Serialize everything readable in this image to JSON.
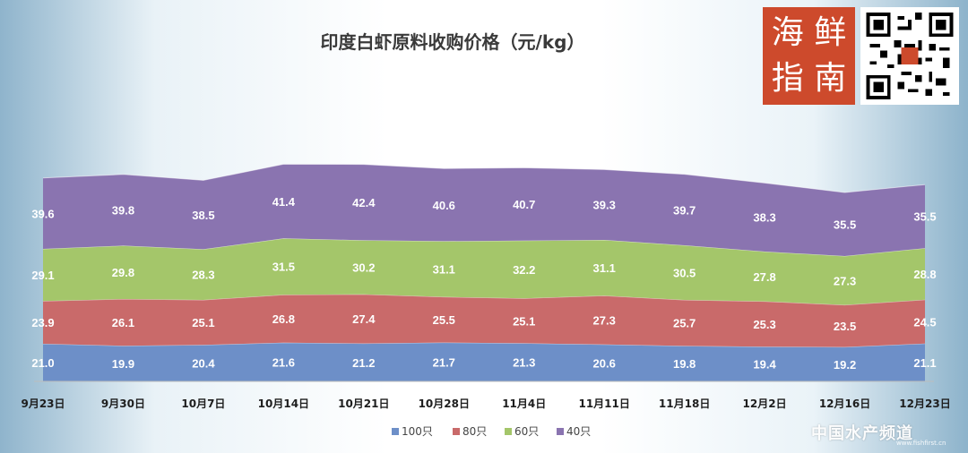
{
  "chart_data": {
    "type": "area",
    "stacked": true,
    "title": "印度白虾原料收购价格（元/kg）",
    "categories": [
      "9月23日",
      "9月30日",
      "10月7日",
      "10月14日",
      "10月21日",
      "10月28日",
      "11月4日",
      "11月11日",
      "11月18日",
      "12月2日",
      "12月16日",
      "12月23日"
    ],
    "series": [
      {
        "name": "100只",
        "color": "#6d8fc8",
        "values": [
          21.0,
          19.9,
          20.4,
          21.6,
          21.2,
          21.7,
          21.3,
          20.6,
          19.8,
          19.4,
          19.2,
          21.1
        ]
      },
      {
        "name": "80只",
        "color": "#c96a6a",
        "values": [
          23.9,
          26.1,
          25.1,
          26.8,
          27.4,
          25.5,
          25.1,
          27.3,
          25.7,
          25.3,
          23.5,
          24.5
        ]
      },
      {
        "name": "60只",
        "color": "#a4c66a",
        "values": [
          29.1,
          29.8,
          28.3,
          31.5,
          30.2,
          31.1,
          32.2,
          31.1,
          30.5,
          27.8,
          27.3,
          28.8
        ]
      },
      {
        "name": "40只",
        "color": "#8a74b0",
        "values": [
          39.6,
          39.8,
          38.5,
          41.4,
          42.4,
          40.6,
          40.7,
          39.3,
          39.7,
          38.3,
          35.5,
          35.5
        ]
      }
    ],
    "legend_position": "bottom"
  },
  "brand": {
    "logo_chars": [
      "海",
      "鲜",
      "指",
      "南"
    ],
    "watermark": "中国水产频道",
    "watermark_url": "www.fishfirst.cn"
  }
}
